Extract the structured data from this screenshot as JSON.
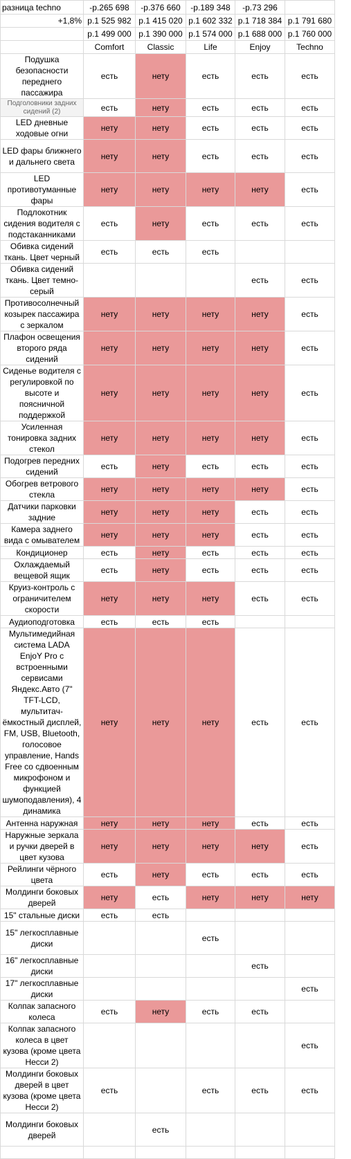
{
  "header": {
    "diff_row": {
      "label": "разница techno",
      "values": [
        "-р.265 698",
        "-р.376 660",
        "-р.189 348",
        "-р.73 296",
        ""
      ]
    },
    "pct_row": {
      "label": "+1,8%",
      "values": [
        "р.1 525 982",
        "р.1 415 020",
        "р.1 602 332",
        "р.1 718 384",
        "р.1 791 680"
      ]
    },
    "price_row": {
      "label": "",
      "values": [
        "р.1 499 000",
        "р.1 390 000",
        "р.1 574 000",
        "р.1 688 000",
        "р.1 760 000"
      ]
    },
    "trims": [
      "Comfort",
      "Classic",
      "Life",
      "Enjoy",
      "Techno"
    ]
  },
  "legend": {
    "yes": "есть",
    "no": "нету"
  },
  "colors": {
    "no_fill": "#ea9999",
    "grid": "#d9d9d9",
    "muted_fill": "#f3f3f3"
  },
  "features": [
    {
      "name": "Подушка безопасности переднего пассажира",
      "values": [
        "есть",
        "нету",
        "есть",
        "есть",
        "есть"
      ]
    },
    {
      "name": "Подголовники задних сидений (2)",
      "values": [
        "есть",
        "нету",
        "есть",
        "есть",
        "есть"
      ],
      "muted": true
    },
    {
      "name": "LED дневные ходовые огни",
      "values": [
        "нету",
        "нету",
        "есть",
        "есть",
        "есть"
      ]
    },
    {
      "name": "LED фары ближнего и дальнего света",
      "values": [
        "нету",
        "нету",
        "есть",
        "есть",
        "есть"
      ]
    },
    {
      "name": "LED противотуманные фары",
      "values": [
        "нету",
        "нету",
        "нету",
        "нету",
        "есть"
      ]
    },
    {
      "name": "Подлокотник сидения водителя с подстаканниками",
      "values": [
        "есть",
        "нету",
        "есть",
        "есть",
        "есть"
      ]
    },
    {
      "name": "Обивка сидений ткань. Цвет черный",
      "values": [
        "есть",
        "есть",
        "есть",
        "",
        ""
      ]
    },
    {
      "name": "Обивка сидений ткань. Цвет темно-серый",
      "values": [
        "",
        "",
        "",
        "есть",
        "есть"
      ]
    },
    {
      "name": "Противосолнечный козырек пассажира с зеркалом",
      "values": [
        "нету",
        "нету",
        "нету",
        "нету",
        "есть"
      ]
    },
    {
      "name": "Плафон освещения второго ряда сидений",
      "values": [
        "нету",
        "нету",
        "нету",
        "нету",
        "есть"
      ]
    },
    {
      "name": "Сиденье водителя с регулировкой по высоте и поясничной поддержкой",
      "values": [
        "нету",
        "нету",
        "нету",
        "нету",
        "есть"
      ]
    },
    {
      "name": "Усиленная тонировка задних стекол",
      "values": [
        "нету",
        "нету",
        "нету",
        "нету",
        "есть"
      ]
    },
    {
      "name": "Подогрев передних сидений",
      "values": [
        "есть",
        "нету",
        "есть",
        "есть",
        "есть"
      ]
    },
    {
      "name": "Обогрев ветрового стекла",
      "values": [
        "нету",
        "нету",
        "нету",
        "нету",
        "есть"
      ]
    },
    {
      "name": "Датчики парковки задние",
      "values": [
        "нету",
        "нету",
        "нету",
        "есть",
        "есть"
      ]
    },
    {
      "name": "Камера заднего вида с омывателем",
      "values": [
        "нету",
        "нету",
        "нету",
        "есть",
        "есть"
      ]
    },
    {
      "name": "Кондиционер",
      "values": [
        "есть",
        "нету",
        "есть",
        "есть",
        "есть"
      ]
    },
    {
      "name": "Охлаждаемый вещевой ящик",
      "values": [
        "есть",
        "нету",
        "есть",
        "есть",
        "есть"
      ]
    },
    {
      "name": "Круиз-контроль с ограничителем скорости",
      "values": [
        "нету",
        "нету",
        "нету",
        "есть",
        "есть"
      ]
    },
    {
      "name": "Аудиоподготовка",
      "values": [
        "есть",
        "есть",
        "есть",
        "",
        ""
      ]
    },
    {
      "name": "Мультимедийная система LADA EnjoY Pro с встроенными сервисами Яндекс.Авто (7\" TFT-LCD, мультитач-ёмкостный дисплей, FM, USB, Bluetooth, голосовое управление, Hands Free со сдвоенным микрофоном и функцией шумоподавления), 4 динамика",
      "values": [
        "нету",
        "нету",
        "нету",
        "есть",
        "есть"
      ]
    },
    {
      "name": "Антенна наружная",
      "values": [
        "нету",
        "нету",
        "нету",
        "есть",
        "есть"
      ]
    },
    {
      "name": "Наружные зеркала и ручки дверей в цвет кузова",
      "values": [
        "нету",
        "нету",
        "нету",
        "нету",
        "есть"
      ]
    },
    {
      "name": "Рейлинги чёрного цвета",
      "values": [
        "есть",
        "нету",
        "есть",
        "есть",
        "есть"
      ]
    },
    {
      "name": "Молдинги боковых дверей",
      "values": [
        "нету",
        "есть",
        "нету",
        "нету",
        "нету"
      ]
    },
    {
      "name": "15\" стальные диски",
      "values": [
        "есть",
        "есть",
        "",
        "",
        ""
      ]
    },
    {
      "name": "15\" легкосплавные диски",
      "values": [
        "",
        "",
        "есть",
        "",
        ""
      ],
      "dot": "•"
    },
    {
      "name": "16\" легкосплавные диски",
      "values": [
        "",
        "",
        "",
        "есть",
        ""
      ]
    },
    {
      "name": "17\" легкосплавные диски",
      "values": [
        "",
        "",
        "",
        "",
        "есть"
      ]
    },
    {
      "name": "Колпак запасного колеса",
      "values": [
        "есть",
        "нету",
        "есть",
        "есть",
        ""
      ]
    },
    {
      "name": "Колпак запасного колеса в цвет кузова (кроме цвета Несси 2)",
      "values": [
        "",
        "",
        "",
        "",
        "есть"
      ]
    },
    {
      "name": "Молдинги боковых дверей в цвет кузова (кроме цвета Несси 2)",
      "values": [
        "есть",
        "",
        "есть",
        "есть",
        "есть"
      ]
    },
    {
      "name": "Молдинги боковых дверей",
      "values": [
        "",
        "есть",
        "",
        "",
        ""
      ]
    },
    {
      "name": "",
      "values": [
        "",
        "",
        "",
        "",
        ""
      ]
    }
  ]
}
